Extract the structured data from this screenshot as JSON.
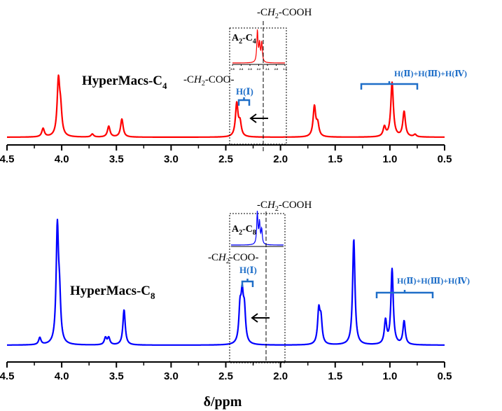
{
  "chart_data": [
    {
      "type": "line",
      "sample_label": "HyperMacs-C",
      "sample_sub": "4",
      "color": "#ff0000",
      "x_range": [
        4.5,
        0.5
      ],
      "ticks": [
        "4.5",
        "4.0",
        "3.5",
        "3.0",
        "2.5",
        "2.0",
        "1.5",
        "1.0",
        "0.5"
      ],
      "peaks": [
        {
          "x": 4.17,
          "h": 0.14
        },
        {
          "x": 4.03,
          "h": 0.9
        },
        {
          "x": 4.01,
          "h": 0.38
        },
        {
          "x": 3.72,
          "h": 0.05
        },
        {
          "x": 3.57,
          "h": 0.18
        },
        {
          "x": 3.45,
          "h": 0.3
        },
        {
          "x": 2.4,
          "h": 0.55
        },
        {
          "x": 2.37,
          "h": 0.22
        },
        {
          "x": 1.69,
          "h": 0.5
        },
        {
          "x": 1.66,
          "h": 0.2
        },
        {
          "x": 1.05,
          "h": 0.16
        },
        {
          "x": 0.98,
          "h": 0.9
        },
        {
          "x": 0.87,
          "h": 0.42
        },
        {
          "x": 0.77,
          "h": 0.04
        }
      ],
      "inset": {
        "label": "A",
        "label_sub1": "2",
        "label_mid": "-C",
        "label_sub2": "4",
        "ticks": [
          "2.5",
          "2.4",
          "2.3",
          "2.2",
          "2.1",
          "2.0",
          "1.9"
        ],
        "peaks": [
          {
            "x": 2.215,
            "h": 0.95
          },
          {
            "x": 2.19,
            "h": 0.55
          },
          {
            "x": 2.165,
            "h": 0.6
          }
        ]
      },
      "labels": {
        "cooh_pre": "-C",
        "cooh_italic": "H",
        "cooh_sub": "2",
        "cooh_post": "-COOH",
        "ester_pre": "-C",
        "ester_italic": "H",
        "ester_sub": "2",
        "ester_post": "-COO-",
        "h1": "H(Ⅰ)",
        "h_other": "H(Ⅱ)+H(Ⅲ)+H(Ⅳ)"
      }
    },
    {
      "type": "line",
      "sample_label": "HyperMacs-C",
      "sample_sub": "8",
      "color": "#0000ff",
      "x_range": [
        4.5,
        0.5
      ],
      "ticks": [
        "4.5",
        "4.0",
        "3.5",
        "3.0",
        "2.5",
        "2.0",
        "1.5",
        "1.0",
        "0.5"
      ],
      "xlabel": "δ/ppm",
      "peaks": [
        {
          "x": 4.2,
          "h": 0.06
        },
        {
          "x": 4.04,
          "h": 0.97
        },
        {
          "x": 4.02,
          "h": 0.33
        },
        {
          "x": 3.6,
          "h": 0.06
        },
        {
          "x": 3.57,
          "h": 0.06
        },
        {
          "x": 3.43,
          "h": 0.3
        },
        {
          "x": 2.37,
          "h": 0.28
        },
        {
          "x": 2.35,
          "h": 0.36
        },
        {
          "x": 2.33,
          "h": 0.26
        },
        {
          "x": 1.65,
          "h": 0.28
        },
        {
          "x": 1.63,
          "h": 0.2
        },
        {
          "x": 1.33,
          "h": 0.9
        },
        {
          "x": 1.04,
          "h": 0.2
        },
        {
          "x": 0.98,
          "h": 0.64
        },
        {
          "x": 0.87,
          "h": 0.2
        }
      ],
      "inset": {
        "label": "A",
        "label_sub1": "2",
        "label_mid": "-C",
        "label_sub2": "8",
        "ticks": [
          "2.5",
          "2.4",
          "2.3",
          "2.2",
          "2.1",
          "2.0",
          "1.9"
        ],
        "peaks": [
          {
            "x": 2.2,
            "h": 0.95
          },
          {
            "x": 2.175,
            "h": 0.65
          },
          {
            "x": 2.15,
            "h": 0.45
          }
        ]
      },
      "labels": {
        "cooh_pre": "-C",
        "cooh_italic": "H",
        "cooh_sub": "2",
        "cooh_post": "-COOH",
        "ester_pre": "-C",
        "ester_italic": "H",
        "ester_sub": "2",
        "ester_post": "-COO-",
        "h1": "H(Ⅰ)",
        "h_other": "H(Ⅱ)+H(Ⅲ)+H(Ⅳ)"
      }
    }
  ]
}
